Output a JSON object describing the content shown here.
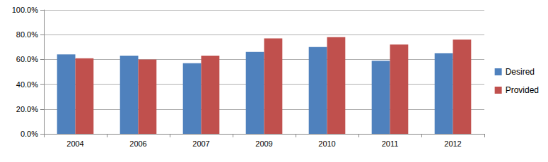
{
  "chart_data": {
    "type": "bar",
    "categories": [
      "2004",
      "2006",
      "2007",
      "2009",
      "2010",
      "2011",
      "2012"
    ],
    "series": [
      {
        "name": "Desired",
        "color": "#4f81bd",
        "values": [
          64,
          63,
          57,
          66,
          70,
          59,
          65
        ]
      },
      {
        "name": "Provided",
        "color": "#c0504d",
        "values": [
          61,
          60,
          63,
          77,
          78,
          72,
          76
        ]
      }
    ],
    "ylim": [
      0,
      100
    ],
    "yticks": [
      {
        "value": 0,
        "label": "0.0%"
      },
      {
        "value": 20,
        "label": "20.0%"
      },
      {
        "value": 40,
        "label": "40.0%"
      },
      {
        "value": 60,
        "label": "60.0%"
      },
      {
        "value": 80,
        "label": "80.0%"
      },
      {
        "value": 100,
        "label": "100.0%"
      }
    ],
    "grid": true,
    "legend": "right"
  }
}
